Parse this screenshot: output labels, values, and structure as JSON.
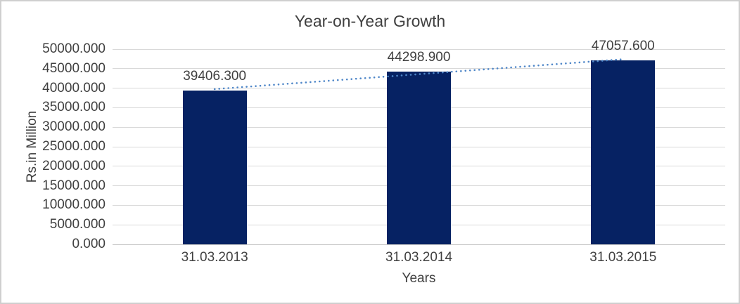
{
  "chart_data": {
    "type": "bar",
    "title": "Year-on-Year Growth",
    "xlabel": "Years",
    "ylabel": "Rs.in Million",
    "categories": [
      "31.03.2013",
      "31.03.2014",
      "31.03.2015"
    ],
    "values": [
      39406.3,
      44298.9,
      47057.6
    ],
    "data_labels": [
      "39406.300",
      "44298.900",
      "47057.600"
    ],
    "ylim": [
      0,
      50000
    ],
    "ytick_step": 5000,
    "ytick_labels": [
      "0.000",
      "5000.000",
      "10000.000",
      "15000.000",
      "20000.000",
      "25000.000",
      "30000.000",
      "35000.000",
      "40000.000",
      "45000.000",
      "50000.000"
    ],
    "grid": "horizontal",
    "legend": "none",
    "trendline": {
      "type": "linear",
      "style": "dotted"
    },
    "colors": {
      "bar": "#062263",
      "trendline": "#4E86C8",
      "gridline": "#D9D9D9",
      "axis_line": "#C8C8C8",
      "text": "#404040",
      "background": "#FFFFFF",
      "border": "#CFCFCF"
    }
  }
}
